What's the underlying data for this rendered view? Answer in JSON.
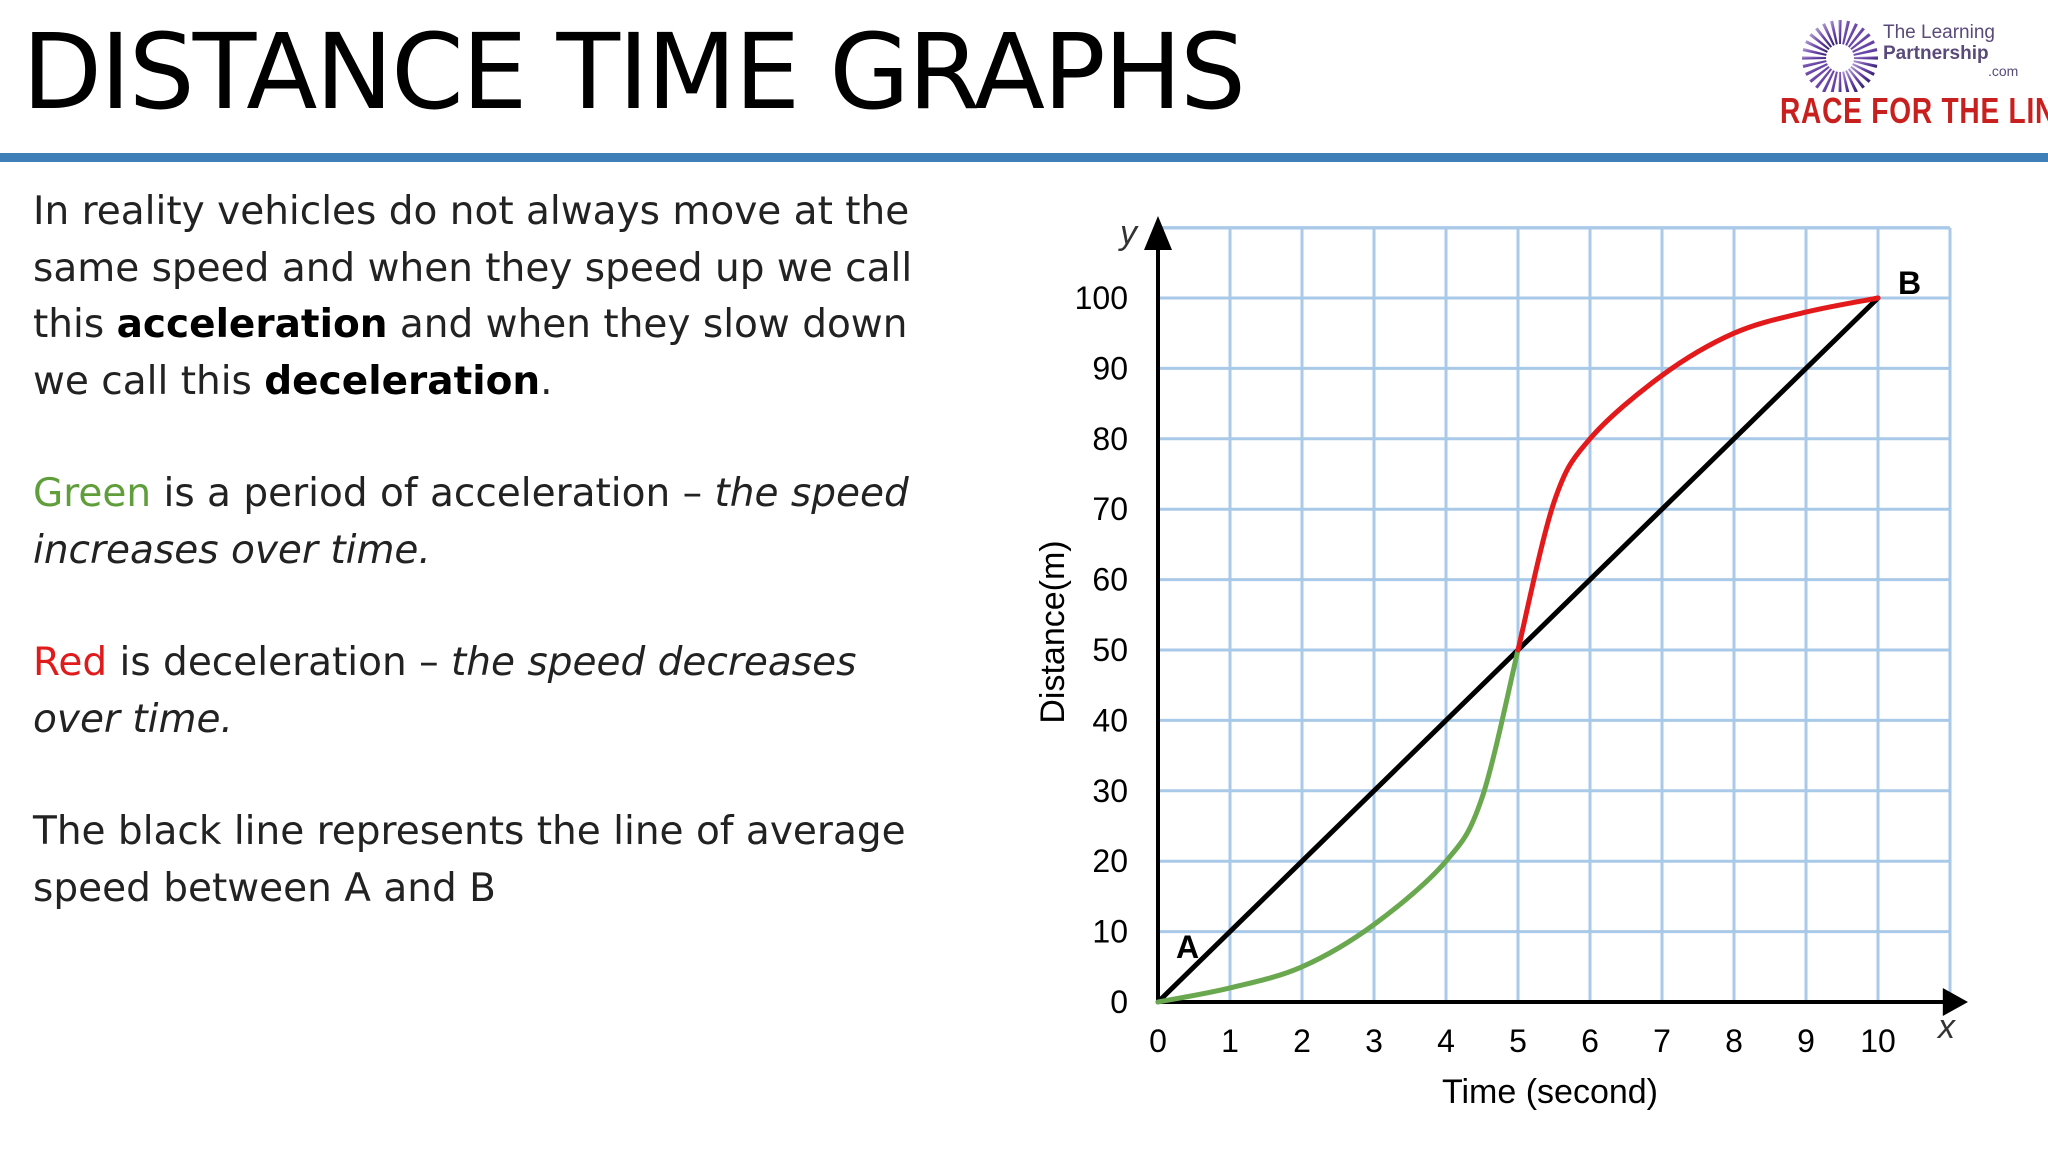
{
  "slide": {
    "title": "DISTANCE TIME GRAPHS",
    "logo": {
      "line1": "The Learning",
      "line2": "Partnership",
      "line3": ".com",
      "tagline": "RACE FOR THE LINE"
    },
    "paragraph1": {
      "part1": "In reality vehicles do not always move at the same speed and when they speed up we call this ",
      "bold1": "acceleration",
      "part2": " and when they slow down we call this ",
      "bold2": "deceleration",
      "part3": "."
    },
    "paragraph2": {
      "colored": "Green",
      "part1": " is a period of acceleration – ",
      "italic": "the speed increases over time."
    },
    "paragraph3": {
      "colored": "Red",
      "part1": " is deceleration – ",
      "italic": "the speed decreases over time."
    },
    "paragraph4": "The black line represents the line of average speed between A and B",
    "colors": {
      "title_rule": "#3f7fb7",
      "green": "#5f9e3a",
      "red": "#e01b1b",
      "grid": "#a9c9e8",
      "axis": "#000000"
    }
  },
  "chart_data": {
    "type": "line",
    "xlabel": "Time (second)",
    "ylabel": "Distance(m)",
    "x_axis_letter": "x",
    "y_axis_letter": "y",
    "xlim": [
      0,
      10
    ],
    "ylim": [
      0,
      100
    ],
    "x_ticks": [
      0,
      1,
      2,
      3,
      4,
      5,
      6,
      7,
      8,
      9,
      10
    ],
    "y_ticks": [
      0,
      10,
      20,
      30,
      40,
      50,
      60,
      70,
      80,
      90,
      100
    ],
    "grid": true,
    "series": [
      {
        "color": "#000000",
        "x": [
          0,
          10
        ],
        "y": [
          0,
          100
        ]
      },
      {
        "color": "#6aa84f",
        "x": [
          0,
          1,
          2,
          3,
          4,
          4.5,
          5
        ],
        "y": [
          0,
          2,
          5,
          11,
          20,
          29,
          50
        ]
      },
      {
        "color": "#e31a1c",
        "x": [
          5,
          5.5,
          6,
          7,
          8,
          9,
          10
        ],
        "y": [
          50,
          71,
          80,
          89,
          95,
          98,
          100
        ]
      }
    ],
    "annotations": [
      {
        "text": "A",
        "x": 0,
        "y": 0
      },
      {
        "text": "B",
        "x": 10,
        "y": 100
      }
    ]
  }
}
